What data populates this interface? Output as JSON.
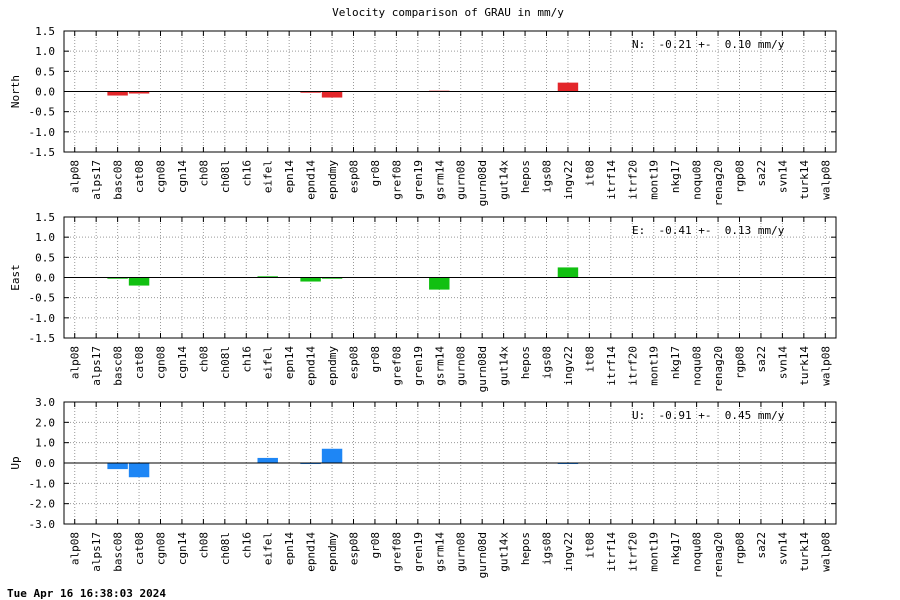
{
  "title": "Velocity comparison of GRAU in mm/y",
  "timestamp": "Tue Apr 16 16:38:03 2024",
  "chart_data": [
    {
      "type": "bar",
      "ylabel": "North",
      "annotation": "N:  -0.21 +-  0.10 mm/y",
      "color": "#e3262a",
      "ylim": [
        -1.5,
        1.5
      ],
      "yticks": [
        "1.5",
        "1.0",
        "0.5",
        "0.0",
        "-0.5",
        "-1.0",
        "-1.5"
      ],
      "grid": true,
      "categories": [
        "alp08",
        "alps17",
        "basc08",
        "cat08",
        "cgn08",
        "cgn14",
        "ch08",
        "ch08l",
        "ch16",
        "eifel",
        "epn14",
        "epnd14",
        "epndmy",
        "esp08",
        "gr08",
        "gref08",
        "gren19",
        "gsrm14",
        "gurn08",
        "gurn08d",
        "gut14x",
        "hepos",
        "igs08",
        "ingv22",
        "it08",
        "itrf14",
        "itrf20",
        "mont19",
        "nkg17",
        "noqu08",
        "renag20",
        "rgp08",
        "sa22",
        "svn14",
        "turk14",
        "walp08"
      ],
      "values": [
        0,
        0,
        -0.1,
        -0.05,
        0,
        0,
        0,
        0,
        0,
        0,
        0,
        -0.03,
        -0.15,
        0,
        0,
        0,
        0,
        0.02,
        0,
        0,
        0,
        0,
        0,
        0.22,
        0,
        0,
        0,
        0,
        0,
        0,
        0,
        0,
        0,
        0,
        0,
        0
      ]
    },
    {
      "type": "bar",
      "ylabel": "East",
      "annotation": "E:  -0.41 +-  0.13 mm/y",
      "color": "#11c011",
      "ylim": [
        -1.5,
        1.5
      ],
      "yticks": [
        "1.5",
        "1.0",
        "0.5",
        "0.0",
        "-0.5",
        "-1.0",
        "-1.5"
      ],
      "grid": true,
      "categories": [
        "alp08",
        "alps17",
        "basc08",
        "cat08",
        "cgn08",
        "cgn14",
        "ch08",
        "ch08l",
        "ch16",
        "eifel",
        "epn14",
        "epnd14",
        "epndmy",
        "esp08",
        "gr08",
        "gref08",
        "gren19",
        "gsrm14",
        "gurn08",
        "gurn08d",
        "gut14x",
        "hepos",
        "igs08",
        "ingv22",
        "it08",
        "itrf14",
        "itrf20",
        "mont19",
        "nkg17",
        "noqu08",
        "renag20",
        "rgp08",
        "sa22",
        "svn14",
        "turk14",
        "walp08"
      ],
      "values": [
        0,
        0,
        -0.03,
        -0.2,
        0,
        0,
        0,
        0,
        0,
        0.03,
        0,
        -0.1,
        -0.03,
        0,
        0,
        0,
        0,
        -0.3,
        0,
        0,
        0,
        0,
        0,
        0.25,
        0,
        0,
        0,
        0,
        0,
        0,
        0,
        0,
        0,
        0,
        0,
        0
      ]
    },
    {
      "type": "bar",
      "ylabel": "Up",
      "annotation": "U:  -0.91 +-  0.45 mm/y",
      "color": "#1e86f5",
      "ylim": [
        -3.0,
        3.0
      ],
      "yticks": [
        "3.0",
        "2.0",
        "1.0",
        "0.0",
        "-1.0",
        "-2.0",
        "-3.0"
      ],
      "grid": true,
      "categories": [
        "alp08",
        "alps17",
        "basc08",
        "cat08",
        "cgn08",
        "cgn14",
        "ch08",
        "ch08l",
        "ch16",
        "eifel",
        "epn14",
        "epnd14",
        "epndmy",
        "esp08",
        "gr08",
        "gref08",
        "gren19",
        "gsrm14",
        "gurn08",
        "gurn08d",
        "gut14x",
        "hepos",
        "igs08",
        "ingv22",
        "it08",
        "itrf14",
        "itrf20",
        "mont19",
        "nkg17",
        "noqu08",
        "renag20",
        "rgp08",
        "sa22",
        "svn14",
        "turk14",
        "walp08"
      ],
      "values": [
        0,
        0,
        -0.3,
        -0.7,
        0,
        0,
        0,
        0,
        0,
        0.25,
        0,
        -0.05,
        0.7,
        0,
        0,
        0,
        0,
        0,
        0,
        0,
        0,
        0,
        0,
        -0.05,
        0,
        0,
        0,
        0,
        0,
        0,
        0,
        0,
        0,
        0,
        0,
        0
      ]
    }
  ]
}
